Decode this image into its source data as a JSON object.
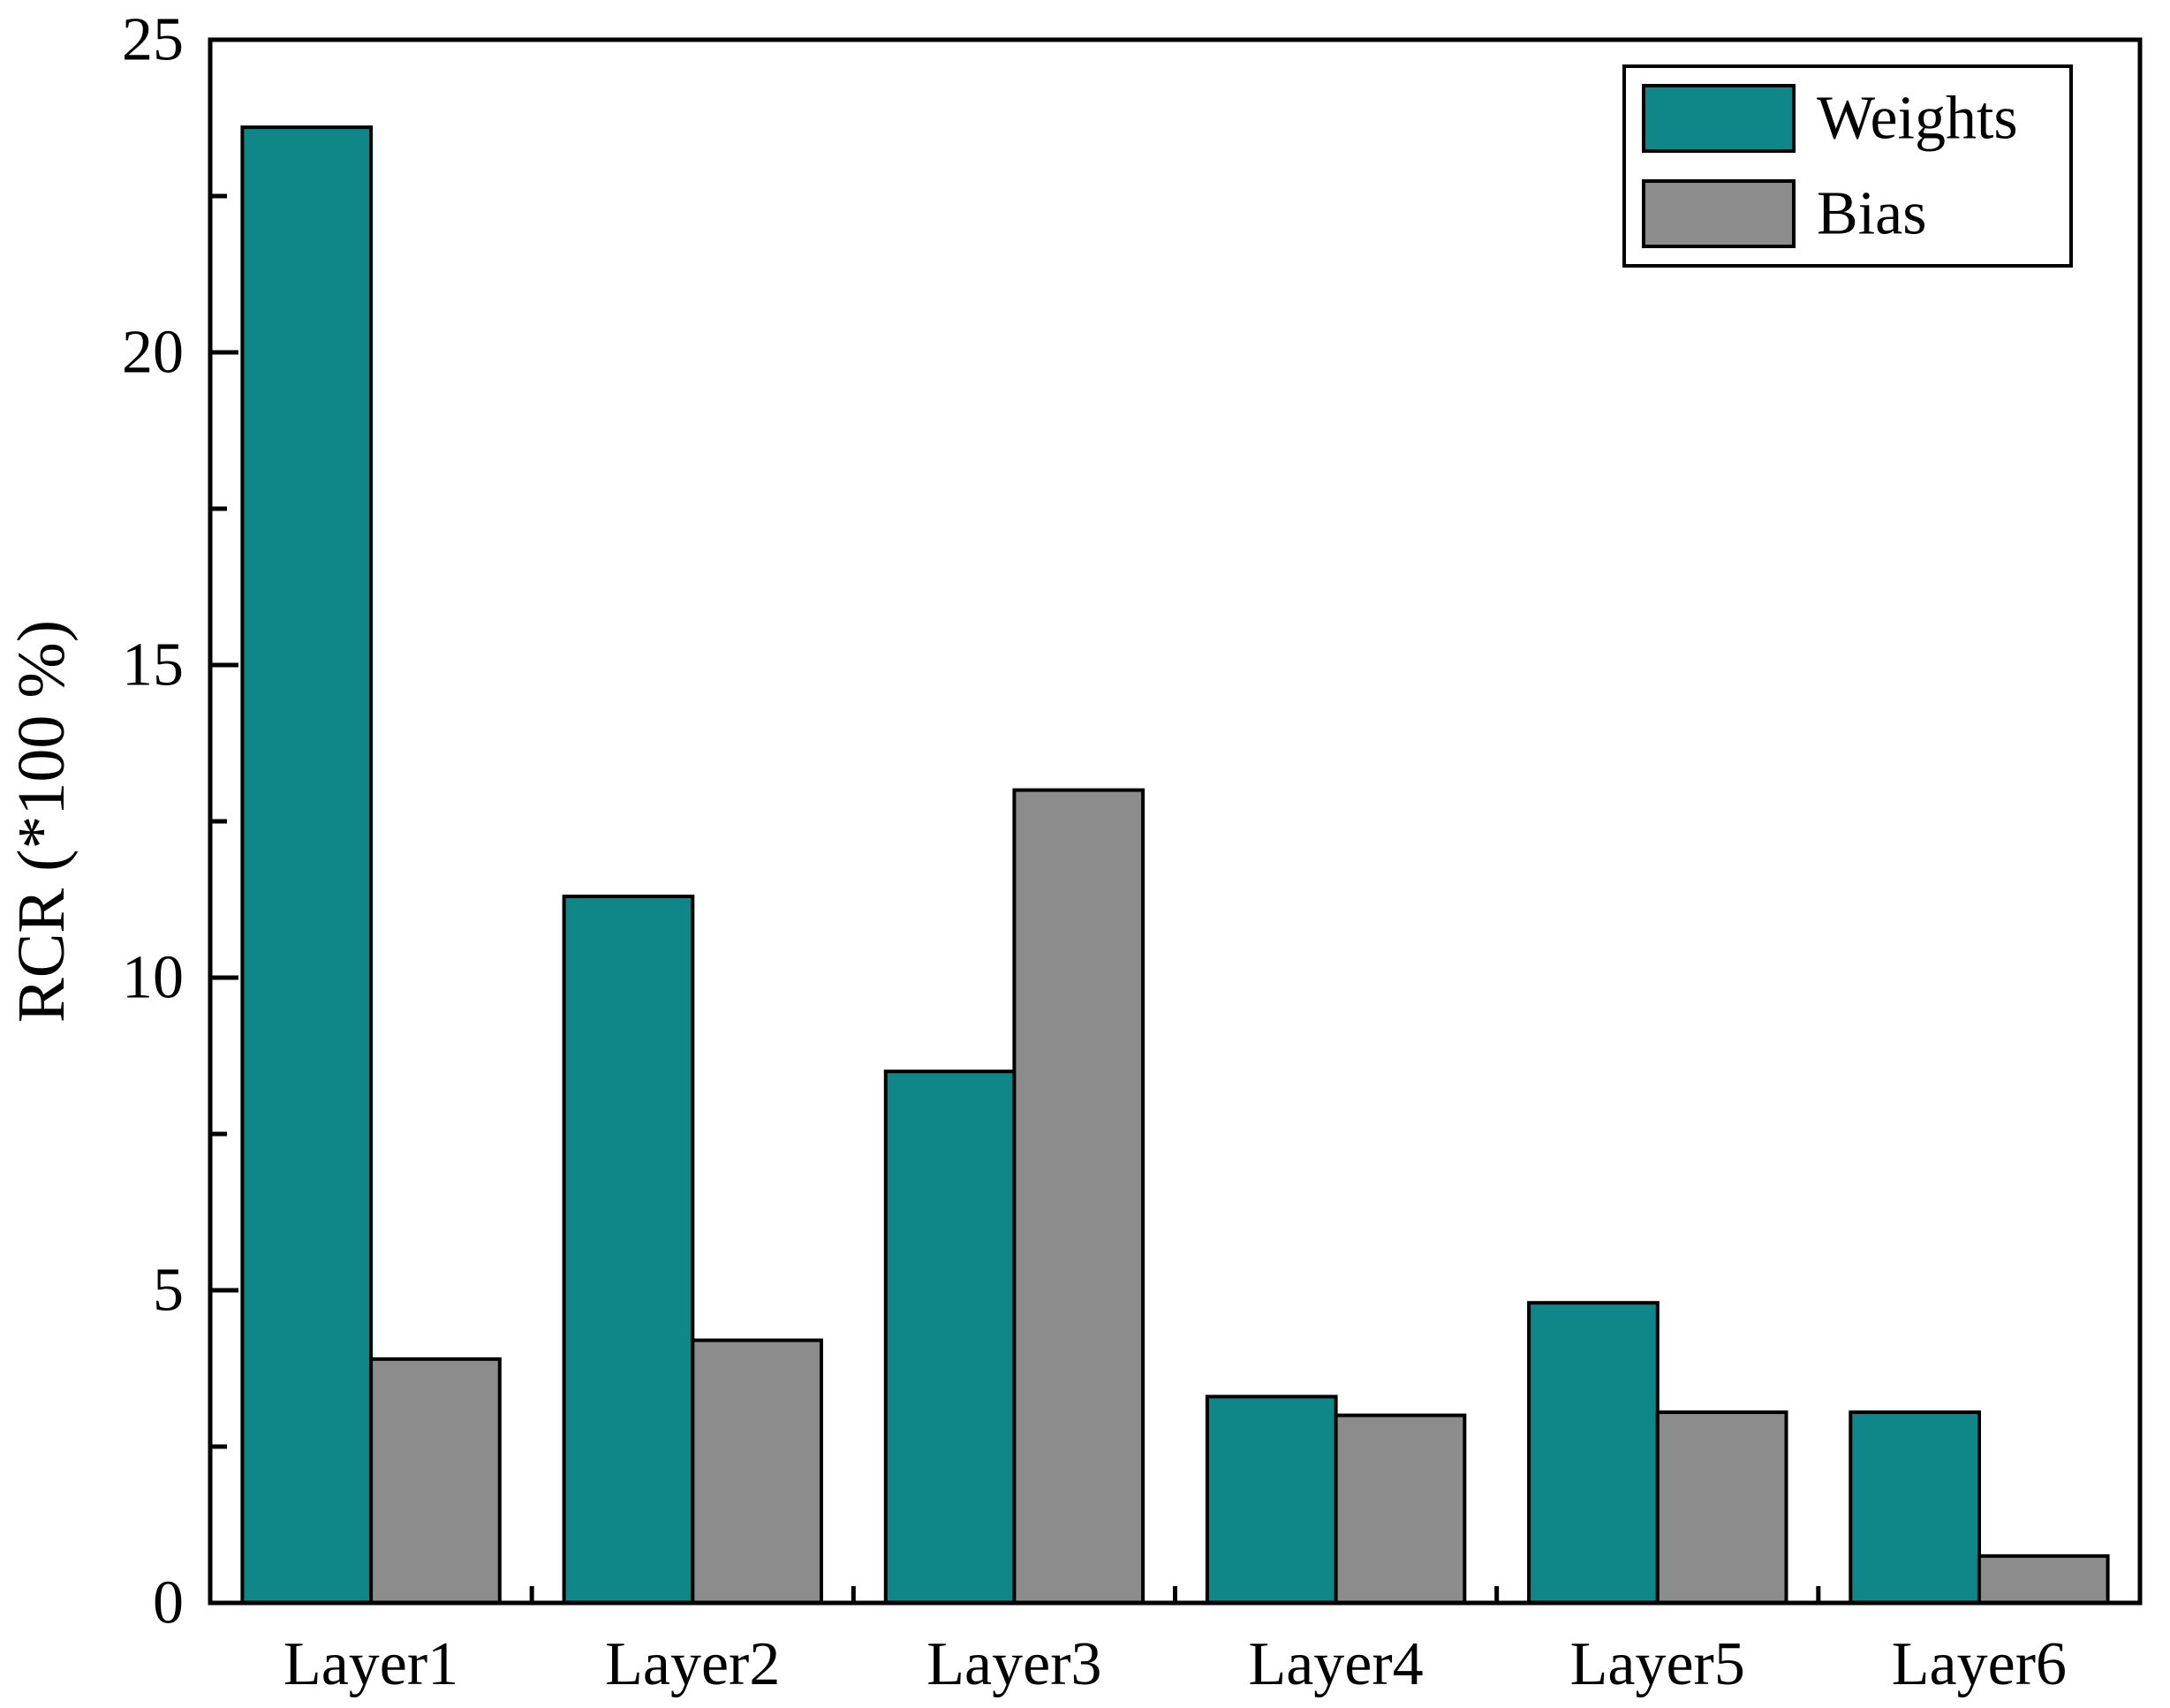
{
  "chart_data": {
    "type": "bar",
    "categories": [
      "Layer1",
      "Layer2",
      "Layer3",
      "Layer4",
      "Layer5",
      "Layer6"
    ],
    "series": [
      {
        "name": "Weights",
        "color": "#0f8688",
        "values": [
          23.6,
          11.3,
          8.5,
          3.3,
          4.8,
          3.05
        ]
      },
      {
        "name": "Bias",
        "color": "#8c8c8c",
        "values": [
          3.9,
          4.2,
          13.0,
          3.0,
          3.05,
          0.75
        ]
      }
    ],
    "title": "",
    "xlabel": "",
    "ylabel": "RCR (*100 %)",
    "ylim": [
      0,
      25
    ],
    "y_major_step": 5,
    "y_minor_step": 2.5,
    "y_tick_labels": [
      "0",
      "5",
      "10",
      "15",
      "20",
      "25"
    ],
    "grid": "off",
    "legend_position": "top-right",
    "bar_edge_color": "#000000",
    "frame_color": "#000000"
  }
}
